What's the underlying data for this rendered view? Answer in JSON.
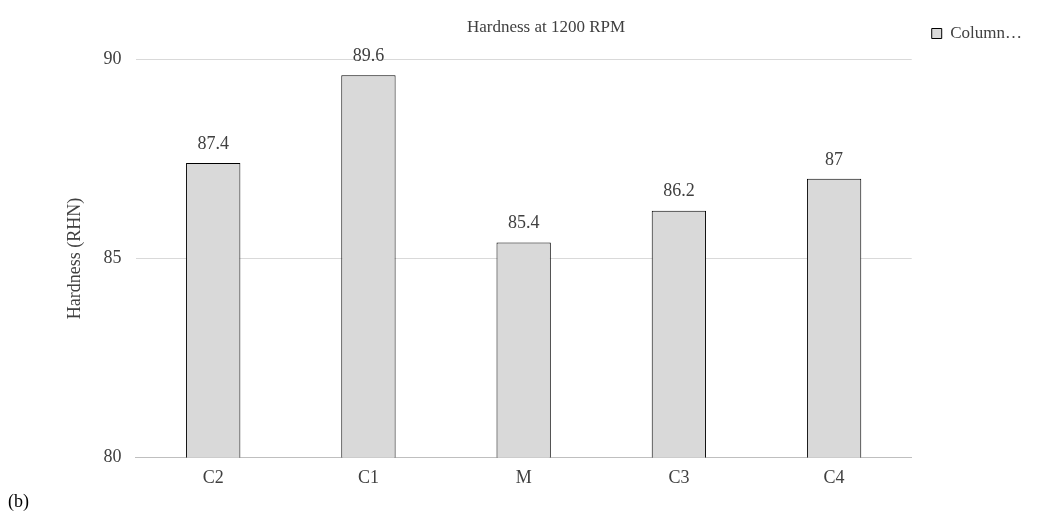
{
  "chart_data": {
    "type": "bar",
    "title": "Hardness at 1200 RPM",
    "ylabel": "Hardness (RHN)",
    "categories": [
      "C2",
      "C1",
      "M",
      "C3",
      "C4"
    ],
    "series": [
      {
        "name": "Column…",
        "color": "#d9d9d9",
        "values": [
          87.4,
          89.6,
          85.4,
          86.2,
          87
        ]
      }
    ],
    "ylim": [
      80,
      90
    ],
    "yticks": [
      80,
      85,
      90
    ],
    "grid": "y",
    "legend": "top right",
    "data_labels": true,
    "annotations": [
      "(b)"
    ]
  }
}
